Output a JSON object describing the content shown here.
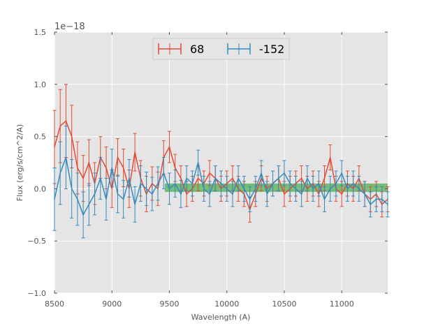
{
  "chart_data": {
    "type": "line",
    "title": "",
    "xlabel": "Wavelength (A)",
    "ylabel": "Flux (erg/s/cm^2/A)",
    "y_offset_label": "1e−18",
    "xlim": [
      8500,
      11400
    ],
    "ylim": [
      -1.0,
      1.5
    ],
    "y_scale_factor": 1e-18,
    "x_ticks": [
      8500,
      9000,
      9500,
      10000,
      10500,
      11000
    ],
    "y_ticks": [
      -1.0,
      -0.5,
      0.0,
      0.5,
      1.0,
      1.5
    ],
    "y_tick_labels": [
      "−1.0",
      "−0.5",
      "0.0",
      "0.5",
      "1.0",
      "1.5"
    ],
    "grid": true,
    "legend_position": "top-center",
    "background_color": "#e5e5e5",
    "series": [
      {
        "name": "68",
        "color": "#e24a33",
        "x": [
          8500,
          8550,
          8600,
          8650,
          8700,
          8750,
          8800,
          8850,
          8900,
          8950,
          9000,
          9050,
          9100,
          9150,
          9200,
          9250,
          9300,
          9350,
          9400,
          9450,
          9500,
          9550,
          9600,
          9650,
          9700,
          9750,
          9800,
          9850,
          9900,
          9950,
          10000,
          10050,
          10100,
          10150,
          10200,
          10250,
          10300,
          10350,
          10400,
          10450,
          10500,
          10550,
          10600,
          10650,
          10700,
          10750,
          10800,
          10850,
          10900,
          10950,
          11000,
          11050,
          11100,
          11150,
          11200,
          11250,
          11300,
          11350,
          11400
        ],
        "y": [
          0.4,
          0.6,
          0.65,
          0.5,
          0.2,
          0.1,
          0.25,
          0.05,
          0.3,
          0.2,
          0.0,
          0.3,
          0.2,
          0.0,
          0.35,
          0.1,
          -0.05,
          0.05,
          0.0,
          0.3,
          0.4,
          0.2,
          0.1,
          -0.05,
          0.0,
          0.1,
          0.05,
          0.15,
          0.1,
          0.0,
          0.05,
          0.1,
          0.0,
          -0.05,
          -0.2,
          -0.05,
          0.1,
          0.0,
          0.05,
          0.1,
          -0.05,
          0.0,
          0.05,
          0.1,
          0.0,
          0.05,
          -0.05,
          0.1,
          0.3,
          0.0,
          -0.05,
          0.05,
          0.0,
          0.1,
          -0.05,
          -0.1,
          -0.05,
          -0.15,
          -0.1
        ],
        "yerr": [
          0.35,
          0.35,
          0.35,
          0.3,
          0.25,
          0.22,
          0.22,
          0.2,
          0.2,
          0.2,
          0.18,
          0.18,
          0.18,
          0.18,
          0.18,
          0.17,
          0.17,
          0.16,
          0.16,
          0.16,
          0.15,
          0.13,
          0.12,
          0.12,
          0.12,
          0.12,
          0.12,
          0.12,
          0.12,
          0.12,
          0.12,
          0.12,
          0.12,
          0.12,
          0.12,
          0.12,
          0.12,
          0.12,
          0.12,
          0.12,
          0.12,
          0.12,
          0.12,
          0.12,
          0.12,
          0.12,
          0.12,
          0.12,
          0.12,
          0.12,
          0.12,
          0.12,
          0.12,
          0.12,
          0.12,
          0.12,
          0.12,
          0.12,
          0.12
        ]
      },
      {
        "name": "-152",
        "color": "#348abd",
        "x": [
          8500,
          8550,
          8600,
          8650,
          8700,
          8750,
          8800,
          8850,
          8900,
          8950,
          9000,
          9050,
          9100,
          9150,
          9200,
          9250,
          9300,
          9350,
          9400,
          9450,
          9500,
          9550,
          9600,
          9650,
          9700,
          9750,
          9800,
          9850,
          9900,
          9950,
          10000,
          10050,
          10100,
          10150,
          10200,
          10250,
          10300,
          10350,
          10400,
          10450,
          10500,
          10550,
          10600,
          10650,
          10700,
          10750,
          10800,
          10850,
          10900,
          10950,
          11000,
          11050,
          11100,
          11150,
          11200,
          11250,
          11300,
          11350,
          11400
        ],
        "y": [
          -0.1,
          0.15,
          0.3,
          0.0,
          -0.1,
          -0.25,
          -0.15,
          -0.05,
          0.1,
          -0.1,
          0.2,
          -0.05,
          -0.1,
          0.1,
          -0.15,
          0.05,
          0.0,
          -0.05,
          0.05,
          0.15,
          0.0,
          0.05,
          -0.05,
          0.1,
          0.05,
          0.25,
          0.0,
          -0.05,
          0.1,
          0.05,
          0.0,
          -0.05,
          0.1,
          0.0,
          -0.1,
          0.0,
          0.15,
          -0.05,
          0.05,
          0.1,
          0.15,
          0.05,
          0.0,
          -0.05,
          0.1,
          0.0,
          0.05,
          -0.1,
          0.0,
          0.05,
          0.15,
          0.0,
          0.05,
          0.0,
          -0.05,
          -0.15,
          -0.1,
          -0.1,
          -0.15
        ],
        "yerr": [
          0.3,
          0.3,
          0.3,
          0.28,
          0.25,
          0.22,
          0.2,
          0.2,
          0.2,
          0.2,
          0.18,
          0.18,
          0.18,
          0.18,
          0.17,
          0.17,
          0.16,
          0.16,
          0.16,
          0.15,
          0.15,
          0.13,
          0.13,
          0.12,
          0.12,
          0.12,
          0.12,
          0.12,
          0.12,
          0.12,
          0.12,
          0.12,
          0.12,
          0.12,
          0.12,
          0.12,
          0.12,
          0.12,
          0.12,
          0.12,
          0.12,
          0.12,
          0.12,
          0.12,
          0.12,
          0.12,
          0.12,
          0.12,
          0.12,
          0.12,
          0.12,
          0.12,
          0.12,
          0.12,
          0.12,
          0.12,
          0.12,
          0.12,
          0.12
        ]
      }
    ],
    "band": {
      "color": "#2ca02c",
      "x_start": 9460,
      "x_end": 11400,
      "y": [
        -0.03,
        0.05
      ]
    }
  }
}
